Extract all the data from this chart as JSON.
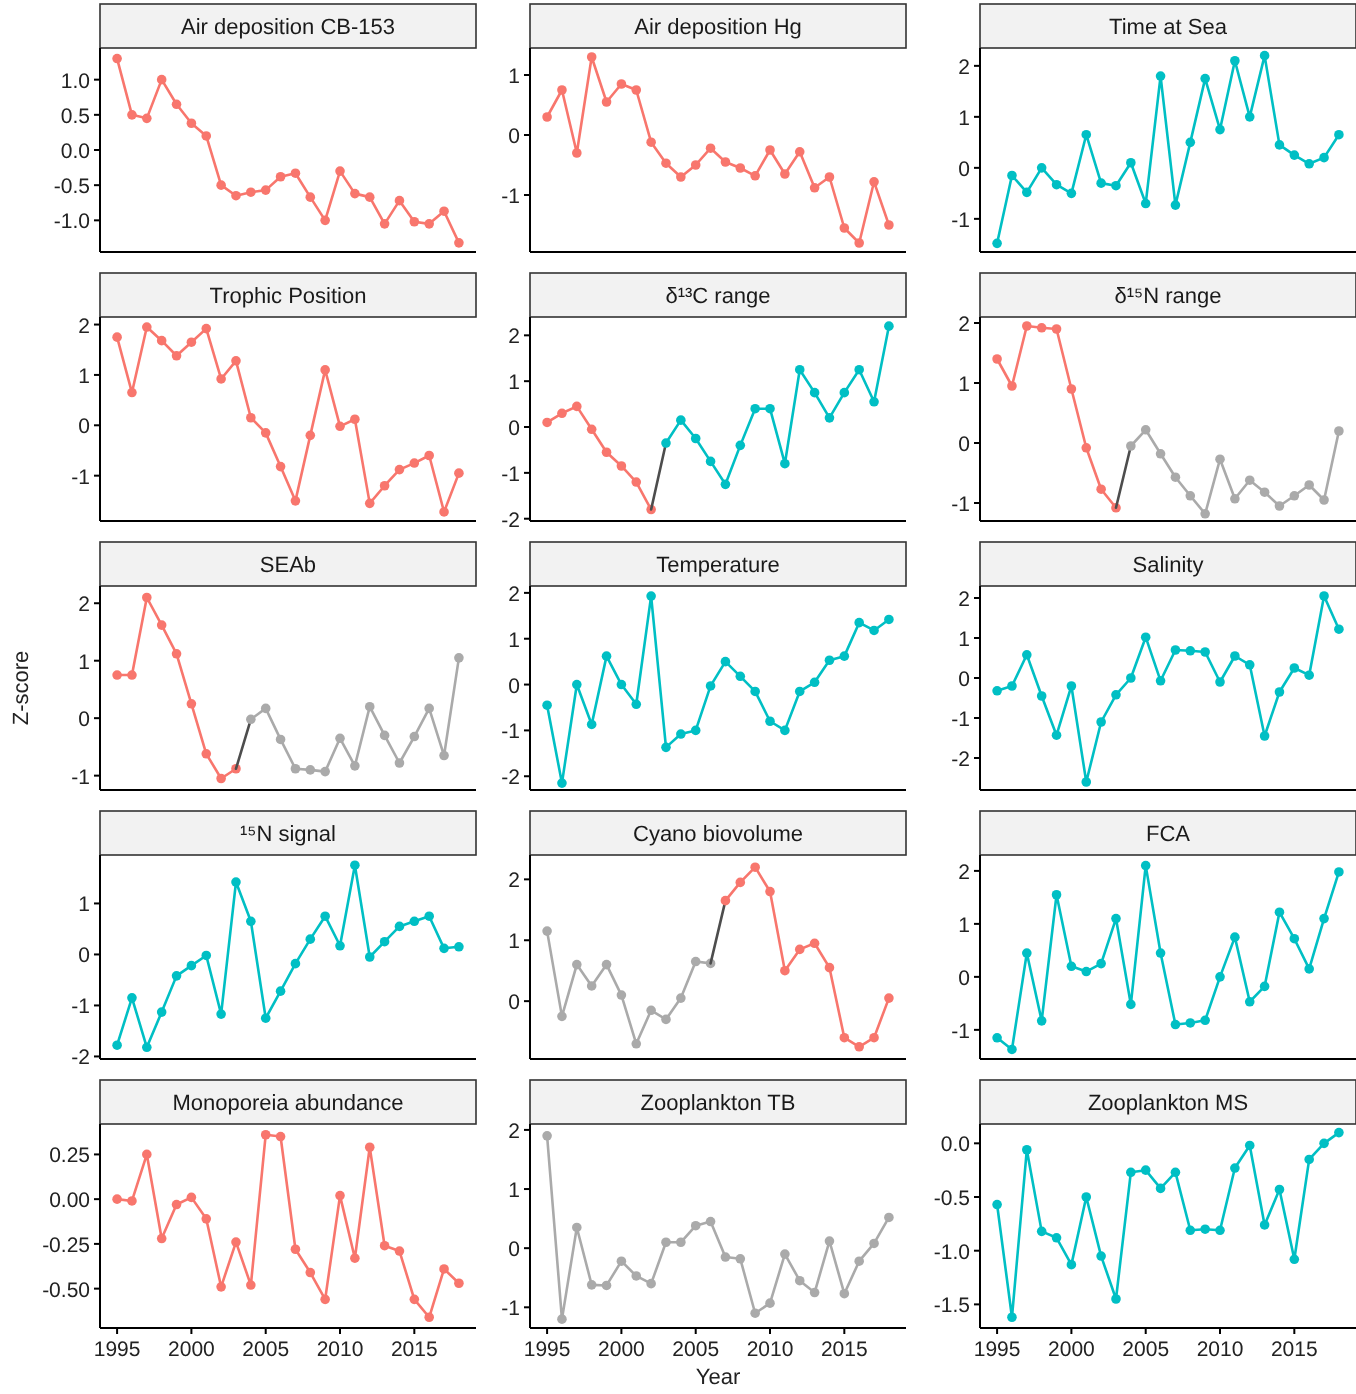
{
  "chart_data": [
    {
      "type": "line",
      "title": "Air deposition CB-153",
      "marker": "circle",
      "xlim": [
        1993.85,
        2019.15
      ],
      "ylim": [
        -1.45,
        1.45
      ],
      "yticks": [
        {
          "value": -1,
          "label": "-1.0"
        },
        {
          "value": -0.5,
          "label": "-0.5"
        },
        {
          "value": 0,
          "label": "0.0"
        },
        {
          "value": 0.5,
          "label": "0.5"
        },
        {
          "value": 1,
          "label": "1.0"
        }
      ],
      "tick_labels": "y",
      "x": [
        1995,
        1996,
        1997,
        1998,
        1999,
        2000,
        2001,
        2002,
        2003,
        2004,
        2005,
        2006,
        2007,
        2008,
        2009,
        2010,
        2011,
        2012,
        2013,
        2014,
        2015,
        2016,
        2017,
        2018
      ],
      "series": [
        {
          "color": "#f8766d",
          "values": [
            1.3,
            0.5,
            0.45,
            1.0,
            0.65,
            0.38,
            0.2,
            -0.5,
            -0.65,
            -0.6,
            -0.57,
            -0.38,
            -0.33,
            -0.67,
            -1.0,
            -0.3,
            -0.62,
            -0.67,
            -1.05,
            -0.72,
            -1.02,
            -1.05,
            -0.87,
            -1.32
          ]
        }
      ]
    },
    {
      "type": "line",
      "title": "Air deposition Hg",
      "marker": "circle",
      "xlim": [
        1993.85,
        2019.15
      ],
      "ylim": [
        -1.95,
        1.45
      ],
      "yticks": [
        -1,
        0,
        1
      ],
      "tick_labels": "y",
      "x": [
        1995,
        1996,
        1997,
        1998,
        1999,
        2000,
        2001,
        2002,
        2003,
        2004,
        2005,
        2006,
        2007,
        2008,
        2009,
        2010,
        2011,
        2012,
        2013,
        2014,
        2015,
        2016,
        2017,
        2018
      ],
      "series": [
        {
          "color": "#f8766d",
          "values": [
            0.3,
            0.75,
            -0.3,
            1.3,
            0.55,
            0.85,
            0.75,
            -0.12,
            -0.47,
            -0.7,
            -0.5,
            -0.22,
            -0.45,
            -0.55,
            -0.68,
            -0.25,
            -0.65,
            -0.28,
            -0.88,
            -0.7,
            -1.55,
            -1.8,
            -0.78,
            -1.5
          ]
        }
      ]
    },
    {
      "type": "line",
      "title": "Time at Sea",
      "marker": "circle",
      "xlim": [
        1993.85,
        2019.15
      ],
      "ylim": [
        -1.65,
        2.35
      ],
      "yticks": [
        -1,
        0,
        1,
        2
      ],
      "tick_labels": "y",
      "x": [
        1995,
        1996,
        1997,
        1998,
        1999,
        2000,
        2001,
        2002,
        2003,
        2004,
        2005,
        2006,
        2007,
        2008,
        2009,
        2010,
        2011,
        2012,
        2013,
        2014,
        2015,
        2016,
        2017,
        2018
      ],
      "series": [
        {
          "color": "#00bfc4",
          "values": [
            -1.48,
            -0.15,
            -0.48,
            0.0,
            -0.33,
            -0.5,
            0.65,
            -0.3,
            -0.35,
            0.1,
            -0.7,
            1.8,
            -0.73,
            0.5,
            1.75,
            0.75,
            2.1,
            1.0,
            2.2,
            0.45,
            0.25,
            0.08,
            0.2,
            0.65
          ]
        }
      ]
    },
    {
      "type": "line",
      "title": "Trophic Position",
      "marker": "circle",
      "xlim": [
        1993.85,
        2019.15
      ],
      "ylim": [
        -1.9,
        2.15
      ],
      "yticks": [
        -1,
        0,
        1,
        2
      ],
      "tick_labels": "y",
      "x": [
        1995,
        1996,
        1997,
        1998,
        1999,
        2000,
        2001,
        2002,
        2003,
        2004,
        2005,
        2006,
        2007,
        2008,
        2009,
        2010,
        2011,
        2012,
        2013,
        2014,
        2015,
        2016,
        2017,
        2018
      ],
      "series": [
        {
          "color": "#f8766d",
          "values": [
            1.75,
            0.65,
            1.95,
            1.68,
            1.38,
            1.65,
            1.92,
            0.92,
            1.28,
            0.15,
            -0.15,
            -0.82,
            -1.5,
            -0.2,
            1.1,
            -0.02,
            0.12,
            -1.55,
            -1.2,
            -0.88,
            -0.75,
            -0.6,
            -1.72,
            -0.95
          ]
        }
      ]
    },
    {
      "type": "line",
      "title": "δ¹³C range",
      "marker": "circle",
      "xlim": [
        1993.85,
        2019.15
      ],
      "ylim": [
        -2.05,
        2.4
      ],
      "yticks": [
        -2,
        -1,
        0,
        1,
        2
      ],
      "tick_labels": "y",
      "series": [
        {
          "color": "#f8766d",
          "x": [
            1995,
            1996,
            1997,
            1998,
            1999,
            2000,
            2001,
            2002
          ],
          "values": [
            0.1,
            0.3,
            0.45,
            -0.05,
            -0.55,
            -0.85,
            -1.2,
            -1.8
          ]
        },
        {
          "color": "#4d4d4d",
          "marker": "none",
          "x": [
            2002,
            2003
          ],
          "values": [
            -1.8,
            -0.35
          ]
        },
        {
          "color": "#00bfc4",
          "x": [
            2003,
            2004,
            2005,
            2006,
            2007,
            2008,
            2009,
            2010,
            2011,
            2012,
            2013,
            2014,
            2015,
            2016,
            2017,
            2018
          ],
          "values": [
            -0.35,
            0.15,
            -0.25,
            -0.75,
            -1.25,
            -0.4,
            0.4,
            0.4,
            -0.8,
            1.25,
            0.75,
            0.2,
            0.75,
            1.25,
            0.55,
            2.2
          ]
        }
      ]
    },
    {
      "type": "line",
      "title": "δ¹⁵N range",
      "marker": "circle",
      "xlim": [
        1993.85,
        2019.15
      ],
      "ylim": [
        -1.3,
        2.1
      ],
      "yticks": [
        -1,
        0,
        1,
        2
      ],
      "tick_labels": "y",
      "series": [
        {
          "color": "#f8766d",
          "x": [
            1995,
            1996,
            1997,
            1998,
            1999,
            2000,
            2001,
            2002,
            2003
          ],
          "values": [
            1.4,
            0.95,
            1.95,
            1.92,
            1.9,
            0.9,
            -0.08,
            -0.77,
            -1.08
          ]
        },
        {
          "color": "#4d4d4d",
          "marker": "none",
          "x": [
            2003,
            2004
          ],
          "values": [
            -1.08,
            -0.05
          ]
        },
        {
          "color": "#aaaaaa",
          "x": [
            2004,
            2005,
            2006,
            2007,
            2008,
            2009,
            2010,
            2011,
            2012,
            2013,
            2014,
            2015,
            2016,
            2017,
            2018
          ],
          "values": [
            -0.05,
            0.22,
            -0.18,
            -0.57,
            -0.88,
            -1.18,
            -0.27,
            -0.93,
            -0.62,
            -0.82,
            -1.05,
            -0.88,
            -0.7,
            -0.95,
            0.2
          ]
        }
      ]
    },
    {
      "type": "line",
      "title": "SEAb",
      "ylabel": "Z-score",
      "marker": "circle",
      "xlim": [
        1993.85,
        2019.15
      ],
      "ylim": [
        -1.25,
        2.3
      ],
      "yticks": [
        -1,
        0,
        1,
        2
      ],
      "tick_labels": "y",
      "series": [
        {
          "color": "#f8766d",
          "x": [
            1995,
            1996,
            1997,
            1998,
            1999,
            2000,
            2001,
            2002,
            2003
          ],
          "values": [
            0.75,
            0.75,
            2.1,
            1.62,
            1.12,
            0.25,
            -0.62,
            -1.05,
            -0.88
          ]
        },
        {
          "color": "#4d4d4d",
          "marker": "none",
          "x": [
            2003,
            2004
          ],
          "values": [
            -0.88,
            -0.02
          ]
        },
        {
          "color": "#aaaaaa",
          "x": [
            2004,
            2005,
            2006,
            2007,
            2008,
            2009,
            2010,
            2011,
            2012,
            2013,
            2014,
            2015,
            2016,
            2017,
            2018
          ],
          "values": [
            -0.02,
            0.17,
            -0.37,
            -0.88,
            -0.9,
            -0.93,
            -0.35,
            -0.83,
            0.2,
            -0.3,
            -0.78,
            -0.32,
            0.17,
            -0.65,
            1.05
          ]
        }
      ]
    },
    {
      "type": "line",
      "title": "Temperature",
      "marker": "circle",
      "xlim": [
        1993.85,
        2019.15
      ],
      "ylim": [
        -2.3,
        2.15
      ],
      "yticks": [
        -2,
        -1,
        0,
        1,
        2
      ],
      "tick_labels": "y",
      "x": [
        1995,
        1996,
        1997,
        1998,
        1999,
        2000,
        2001,
        2002,
        2003,
        2004,
        2005,
        2006,
        2007,
        2008,
        2009,
        2010,
        2011,
        2012,
        2013,
        2014,
        2015,
        2016,
        2017,
        2018
      ],
      "series": [
        {
          "color": "#00bfc4",
          "values": [
            -0.45,
            -2.15,
            0.0,
            -0.87,
            0.62,
            0.0,
            -0.43,
            1.93,
            -1.37,
            -1.08,
            -1.0,
            -0.03,
            0.5,
            0.18,
            -0.15,
            -0.8,
            -1.0,
            -0.15,
            0.05,
            0.53,
            0.62,
            1.35,
            1.18,
            1.42
          ]
        }
      ]
    },
    {
      "type": "line",
      "title": "Salinity",
      "marker": "circle",
      "xlim": [
        1993.85,
        2019.15
      ],
      "ylim": [
        -2.8,
        2.3
      ],
      "yticks": [
        -2,
        -1,
        0,
        1,
        2
      ],
      "tick_labels": "y",
      "x": [
        1995,
        1996,
        1997,
        1998,
        1999,
        2000,
        2001,
        2002,
        2003,
        2004,
        2005,
        2006,
        2007,
        2008,
        2009,
        2010,
        2011,
        2012,
        2013,
        2014,
        2015,
        2016,
        2017,
        2018
      ],
      "series": [
        {
          "color": "#00bfc4",
          "values": [
            -0.32,
            -0.2,
            0.58,
            -0.45,
            -1.43,
            -0.2,
            -2.6,
            -1.1,
            -0.42,
            0.0,
            1.02,
            -0.07,
            0.7,
            0.68,
            0.65,
            -0.1,
            0.55,
            0.33,
            -1.45,
            -0.35,
            0.25,
            0.07,
            2.05,
            1.22
          ]
        }
      ]
    },
    {
      "type": "line",
      "title": "¹⁵N signal",
      "marker": "circle",
      "xlim": [
        1993.85,
        2019.15
      ],
      "ylim": [
        -2.05,
        1.95
      ],
      "yticks": [
        -2,
        -1,
        0,
        1
      ],
      "tick_labels": "y",
      "x": [
        1995,
        1996,
        1997,
        1998,
        1999,
        2000,
        2001,
        2002,
        2003,
        2004,
        2005,
        2006,
        2007,
        2008,
        2009,
        2010,
        2011,
        2012,
        2013,
        2014,
        2015,
        2016,
        2017,
        2018
      ],
      "series": [
        {
          "color": "#00bfc4",
          "values": [
            -1.78,
            -0.85,
            -1.82,
            -1.13,
            -0.42,
            -0.22,
            -0.02,
            -1.17,
            1.42,
            0.65,
            -1.25,
            -0.72,
            -0.18,
            0.3,
            0.75,
            0.17,
            1.75,
            -0.05,
            0.25,
            0.55,
            0.65,
            0.75,
            0.12,
            0.15
          ]
        }
      ]
    },
    {
      "type": "line",
      "title": "Cyano biovolume",
      "marker": "circle",
      "xlim": [
        1993.85,
        2019.15
      ],
      "ylim": [
        -0.95,
        2.4
      ],
      "yticks": [
        0,
        1,
        2
      ],
      "tick_labels": "y",
      "series": [
        {
          "color": "#aaaaaa",
          "x": [
            1995,
            1996,
            1997,
            1998,
            1999,
            2000,
            2001,
            2002,
            2003,
            2004,
            2005,
            2006
          ],
          "values": [
            1.15,
            -0.25,
            0.6,
            0.25,
            0.6,
            0.1,
            -0.7,
            -0.15,
            -0.3,
            0.05,
            0.65,
            0.62
          ]
        },
        {
          "color": "#4d4d4d",
          "marker": "none",
          "x": [
            2006,
            2007
          ],
          "values": [
            0.62,
            1.65
          ]
        },
        {
          "color": "#f8766d",
          "x": [
            2007,
            2008,
            2009,
            2010,
            2011,
            2012,
            2013,
            2014,
            2015,
            2016,
            2017,
            2018
          ],
          "values": [
            1.65,
            1.95,
            2.2,
            1.8,
            0.5,
            0.85,
            0.95,
            0.55,
            -0.6,
            -0.75,
            -0.6,
            0.05
          ]
        }
      ]
    },
    {
      "type": "line",
      "title": "FCA",
      "marker": "circle",
      "xlim": [
        1993.85,
        2019.15
      ],
      "ylim": [
        -1.55,
        2.3
      ],
      "yticks": [
        -1,
        0,
        1,
        2
      ],
      "tick_labels": "y",
      "x": [
        1995,
        1996,
        1997,
        1998,
        1999,
        2000,
        2001,
        2002,
        2003,
        2004,
        2005,
        2006,
        2007,
        2008,
        2009,
        2010,
        2011,
        2012,
        2013,
        2014,
        2015,
        2016,
        2017,
        2018
      ],
      "series": [
        {
          "color": "#00bfc4",
          "values": [
            -1.15,
            -1.37,
            0.45,
            -0.83,
            1.55,
            0.2,
            0.1,
            0.25,
            1.1,
            -0.52,
            2.1,
            0.45,
            -0.9,
            -0.87,
            -0.82,
            0.0,
            0.75,
            -0.47,
            -0.18,
            1.22,
            0.72,
            0.15,
            1.1,
            1.98
          ]
        }
      ]
    },
    {
      "type": "line",
      "title": "Monoporeia abundance",
      "marker": "circle",
      "xlim": [
        1993.85,
        2019.15
      ],
      "ylim": [
        -0.72,
        0.42
      ],
      "xticks": [
        1995,
        2000,
        2005,
        2010,
        2015
      ],
      "yticks": [
        {
          "value": -0.5,
          "label": "-0.50"
        },
        {
          "value": -0.25,
          "label": "-0.25"
        },
        {
          "value": 0,
          "label": "0.00"
        },
        {
          "value": 0.25,
          "label": "0.25"
        }
      ],
      "x": [
        1995,
        1996,
        1997,
        1998,
        1999,
        2000,
        2001,
        2002,
        2003,
        2004,
        2005,
        2006,
        2007,
        2008,
        2009,
        2010,
        2011,
        2012,
        2013,
        2014,
        2015,
        2016,
        2017,
        2018
      ],
      "series": [
        {
          "color": "#f8766d",
          "values": [
            0.0,
            -0.01,
            0.25,
            -0.22,
            -0.03,
            0.01,
            -0.11,
            -0.49,
            -0.24,
            -0.48,
            0.36,
            0.35,
            -0.28,
            -0.41,
            -0.56,
            0.02,
            -0.33,
            0.29,
            -0.26,
            -0.29,
            -0.56,
            -0.66,
            -0.39,
            -0.47
          ]
        }
      ]
    },
    {
      "type": "line",
      "title": "Zooplankton TB",
      "xlabel": "Year",
      "marker": "circle",
      "xlim": [
        1993.85,
        2019.15
      ],
      "ylim": [
        -1.35,
        2.1
      ],
      "xticks": [
        1995,
        2000,
        2005,
        2010,
        2015
      ],
      "yticks": [
        -1,
        0,
        1,
        2
      ],
      "x": [
        1995,
        1996,
        1997,
        1998,
        1999,
        2000,
        2001,
        2002,
        2003,
        2004,
        2005,
        2006,
        2007,
        2008,
        2009,
        2010,
        2011,
        2012,
        2013,
        2014,
        2015,
        2016,
        2017,
        2018
      ],
      "series": [
        {
          "color": "#aaaaaa",
          "values": [
            1.9,
            -1.2,
            0.35,
            -0.62,
            -0.63,
            -0.22,
            -0.47,
            -0.6,
            0.1,
            0.1,
            0.38,
            0.45,
            -0.15,
            -0.18,
            -1.1,
            -0.93,
            -0.1,
            -0.55,
            -0.75,
            0.12,
            -0.77,
            -0.22,
            0.08,
            0.52
          ]
        }
      ]
    },
    {
      "type": "line",
      "title": "Zooplankton MS",
      "marker": "circle",
      "xlim": [
        1993.85,
        2019.15
      ],
      "ylim": [
        -1.72,
        0.18
      ],
      "xticks": [
        1995,
        2000,
        2005,
        2010,
        2015
      ],
      "yticks": [
        {
          "value": -1.5,
          "label": "-1.5"
        },
        {
          "value": -1,
          "label": "-1.0"
        },
        {
          "value": -0.5,
          "label": "-0.5"
        },
        {
          "value": 0,
          "label": "0.0"
        }
      ],
      "x": [
        1995,
        1996,
        1997,
        1998,
        1999,
        2000,
        2001,
        2002,
        2003,
        2004,
        2005,
        2006,
        2007,
        2008,
        2009,
        2010,
        2011,
        2012,
        2013,
        2014,
        2015,
        2016,
        2017,
        2018
      ],
      "series": [
        {
          "color": "#00bfc4",
          "values": [
            -0.57,
            -1.62,
            -0.06,
            -0.82,
            -0.88,
            -1.13,
            -0.5,
            -1.05,
            -1.45,
            -0.27,
            -0.25,
            -0.42,
            -0.27,
            -0.81,
            -0.8,
            -0.81,
            -0.23,
            -0.02,
            -0.76,
            -0.43,
            -1.08,
            -0.15,
            0.0,
            0.1
          ]
        }
      ]
    }
  ]
}
